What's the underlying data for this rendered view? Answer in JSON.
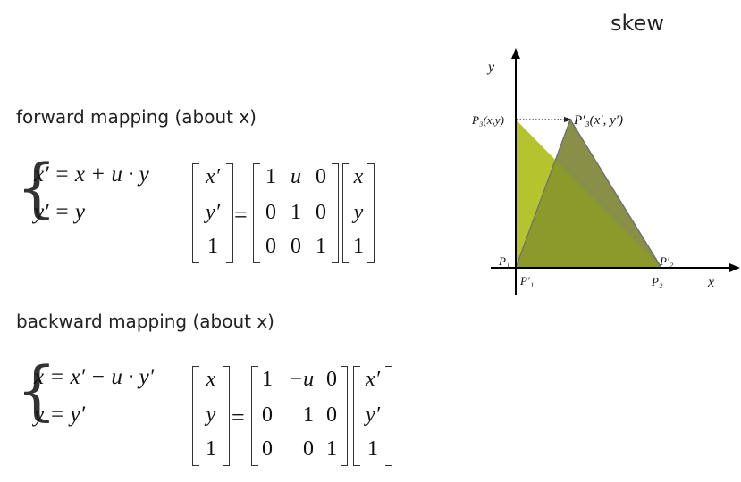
{
  "title": "skew",
  "forward": {
    "heading": "forward mapping (about x)",
    "eq1": "x′ = x + u · y",
    "eq2": "y′ = y",
    "lhs": [
      "x′",
      "y′",
      "1"
    ],
    "matrix": [
      [
        "1",
        "u",
        "0"
      ],
      [
        "0",
        "1",
        "0"
      ],
      [
        "0",
        "0",
        "1"
      ]
    ],
    "rhs": [
      "x",
      "y",
      "1"
    ]
  },
  "backward": {
    "heading": "backward mapping (about x)",
    "eq1": "x = x′ − u · y′",
    "eq2": "y = y′",
    "lhs": [
      "x",
      "y",
      "1"
    ],
    "matrix": [
      [
        "1",
        "−u",
        "0"
      ],
      [
        "0",
        "1",
        "0"
      ],
      [
        "0",
        "0",
        "1"
      ]
    ],
    "rhs": [
      "x′",
      "y′",
      "1"
    ]
  },
  "equals": "=",
  "diagram": {
    "axis_x": "x",
    "axis_y": "y",
    "labels": {
      "p3": "P₃(x,y)",
      "p3_prime": "P′₃(x′, y′)",
      "p1": "P₁",
      "p1_prime": "P′₁",
      "p2": "P₂",
      "p2_prime": "P′₂"
    },
    "colors": {
      "original": "#b5c42e",
      "skewed": "#8a8f48",
      "overlap": "#8b9a2a",
      "axis": "#000000"
    }
  }
}
